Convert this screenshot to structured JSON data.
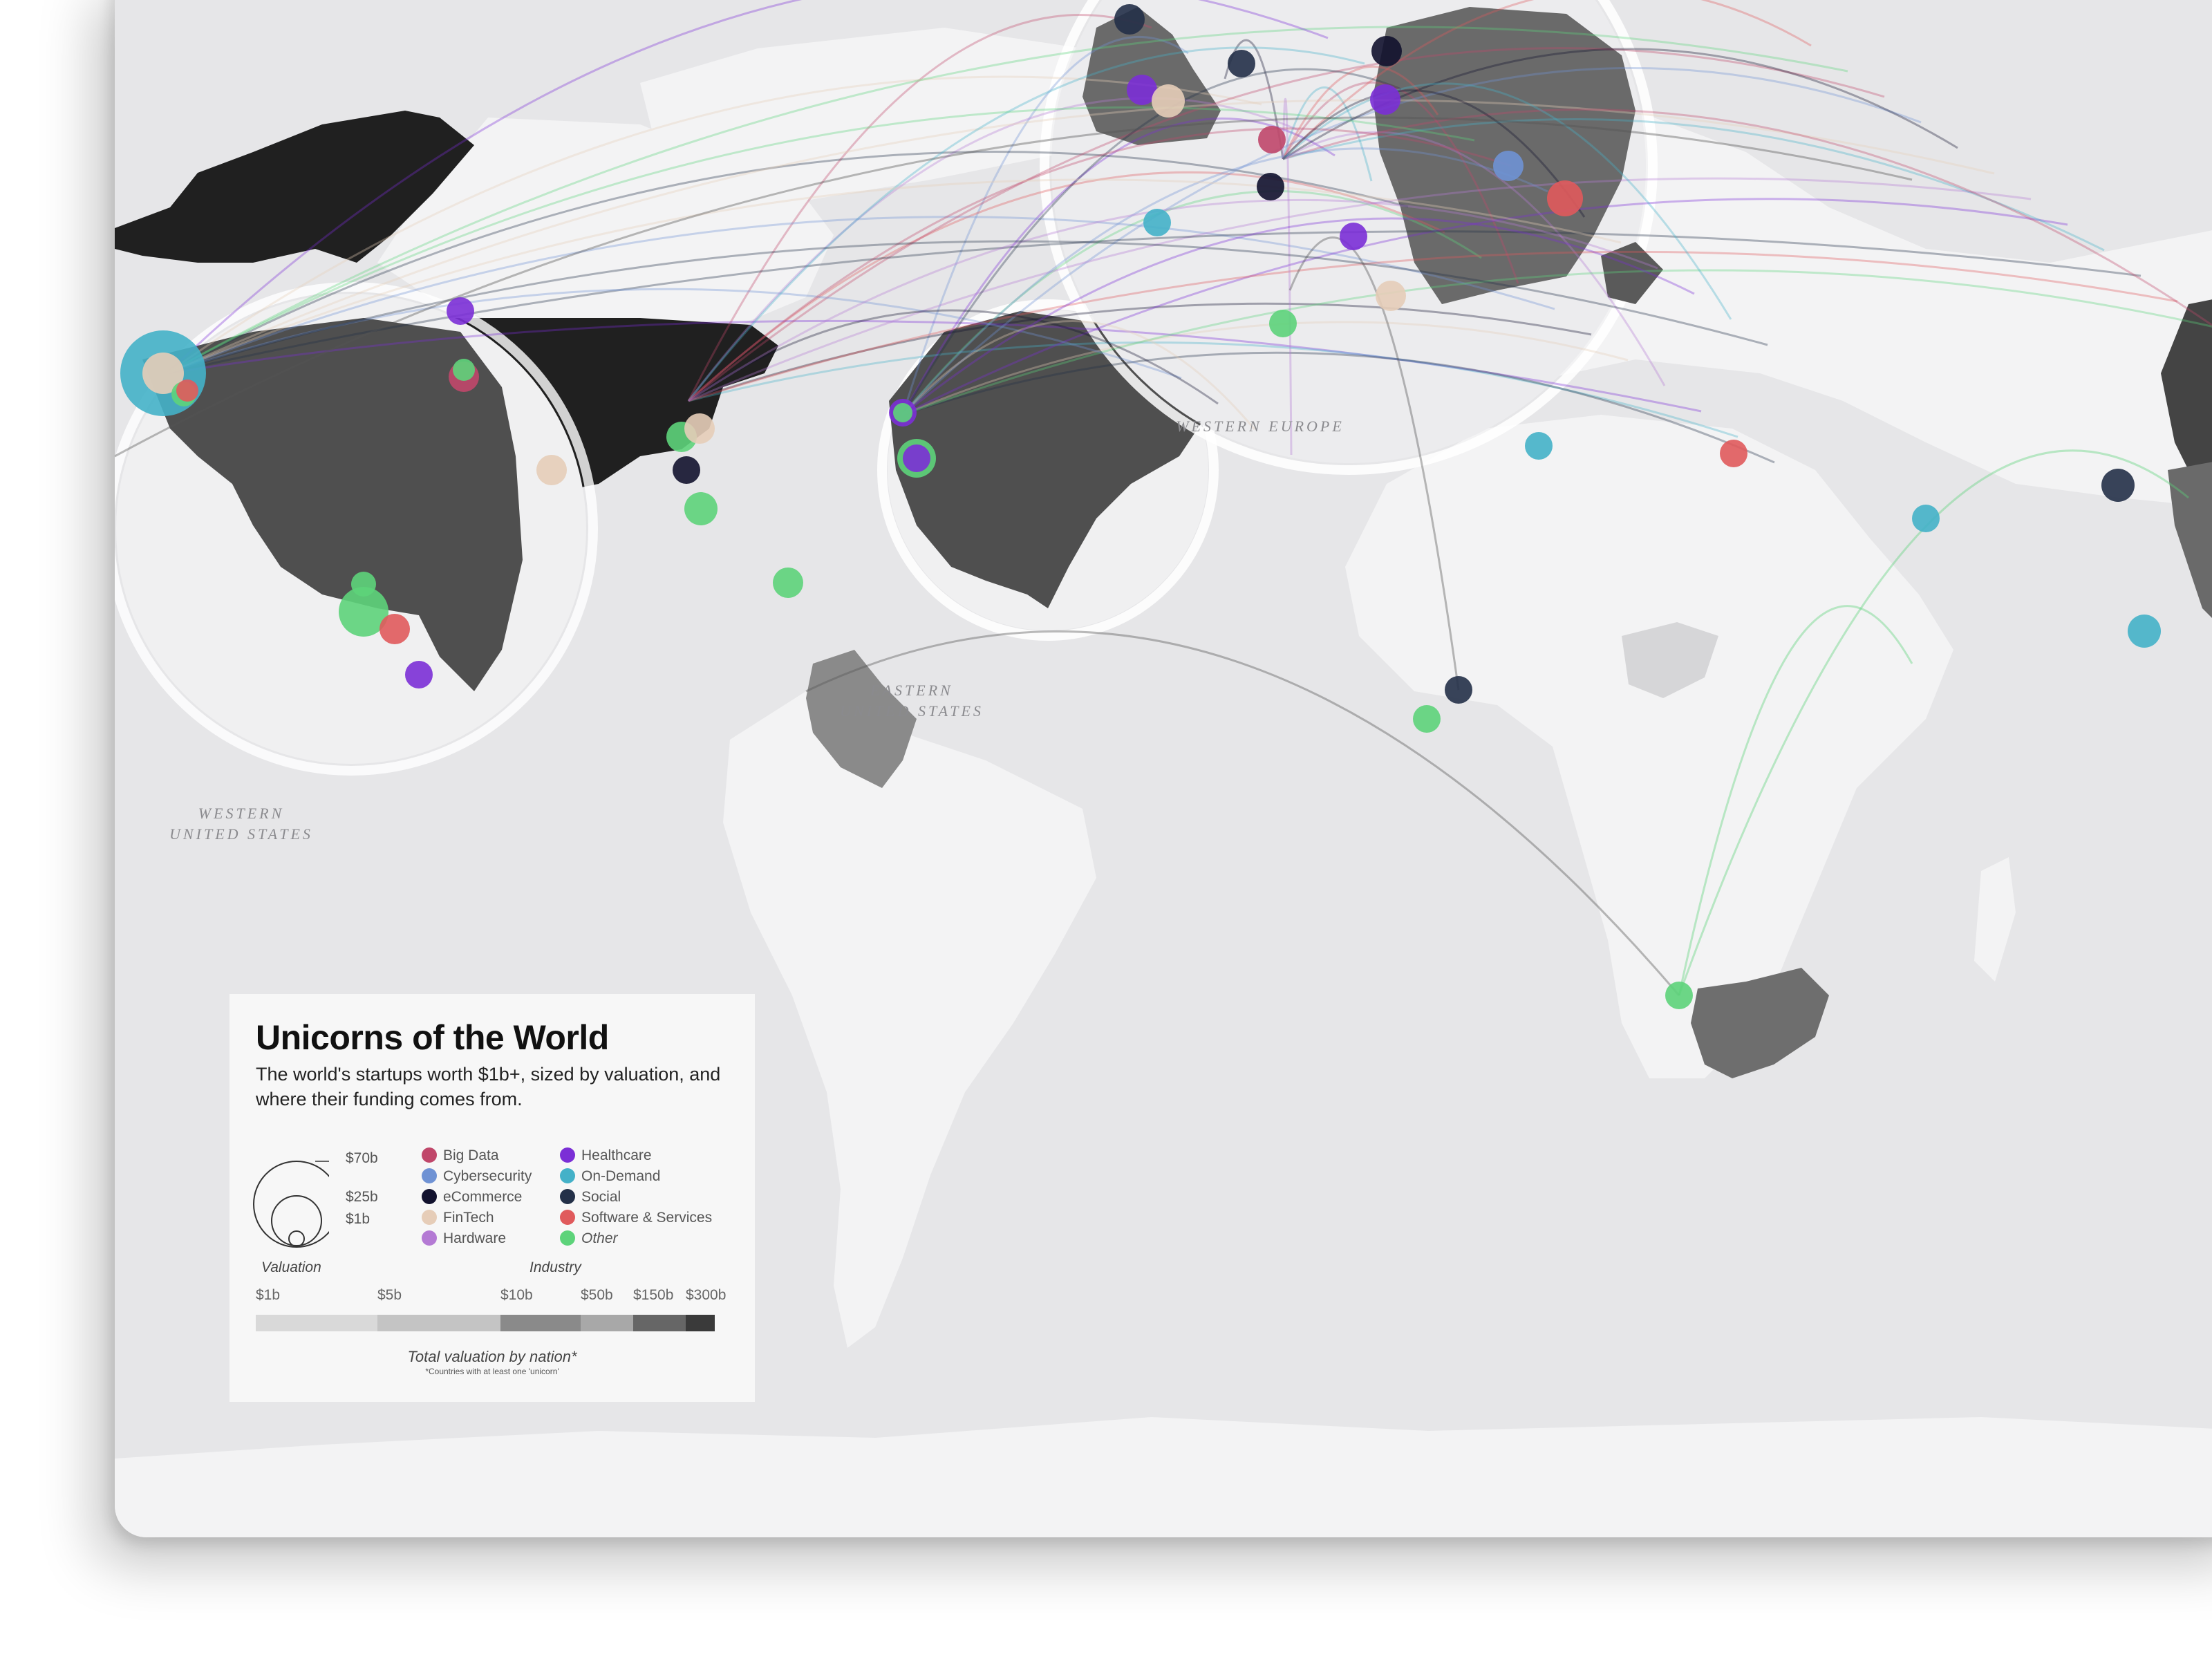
{
  "legend": {
    "title": "Unicorns of the World",
    "subtitle": "The world's startups worth $1b+, sized by valuation, and where their funding comes from.",
    "valuation_sizes": [
      "$70b",
      "$25b",
      "$1b"
    ],
    "valuation_caption": "Valuation",
    "industry_caption": "Industry",
    "industries": [
      {
        "label": "Big Data",
        "color": "#c0476a"
      },
      {
        "label": "Cybersecurity",
        "color": "#6f92d4"
      },
      {
        "label": "eCommerce",
        "color": "#12122e"
      },
      {
        "label": "FinTech",
        "color": "#e6cdb8"
      },
      {
        "label": "Hardware",
        "color": "#b47ad4"
      },
      {
        "label": "Healthcare",
        "color": "#7b2fd6"
      },
      {
        "label": "On-Demand",
        "color": "#44b1c8"
      },
      {
        "label": "Social",
        "color": "#233048"
      },
      {
        "label": "Software & Services",
        "color": "#e05a5c"
      },
      {
        "label": "Other",
        "color": "#5dd37a"
      }
    ],
    "scale_ticks": [
      "$1b",
      "$5b",
      "$10b",
      "$50b",
      "$150b",
      "$300b"
    ],
    "scale_colors": [
      "#d9d9d9",
      "#c4c4c4",
      "#8a8a8a",
      "#a8a8a8",
      "#666666",
      "#3a3a3a"
    ],
    "total_caption": "Total valuation by nation*",
    "footnote": "*Countries with at least one 'unicorn'"
  },
  "regions": {
    "western_europe": "WESTERN EUROPE",
    "eastern_us": "EASTERN\nUNITED STATES",
    "western_us": "WESTERN\nUNITED STATES"
  },
  "map": {
    "ocean_color": "#e6e6e8",
    "land_color": "#f3f3f4",
    "nation_colors": {
      "usa": "#202020",
      "india_china": "#444444",
      "uk_germany": "#6a6a6a",
      "colombia": "#8a8a8a",
      "south_africa": "#6e6e6e"
    }
  }
}
